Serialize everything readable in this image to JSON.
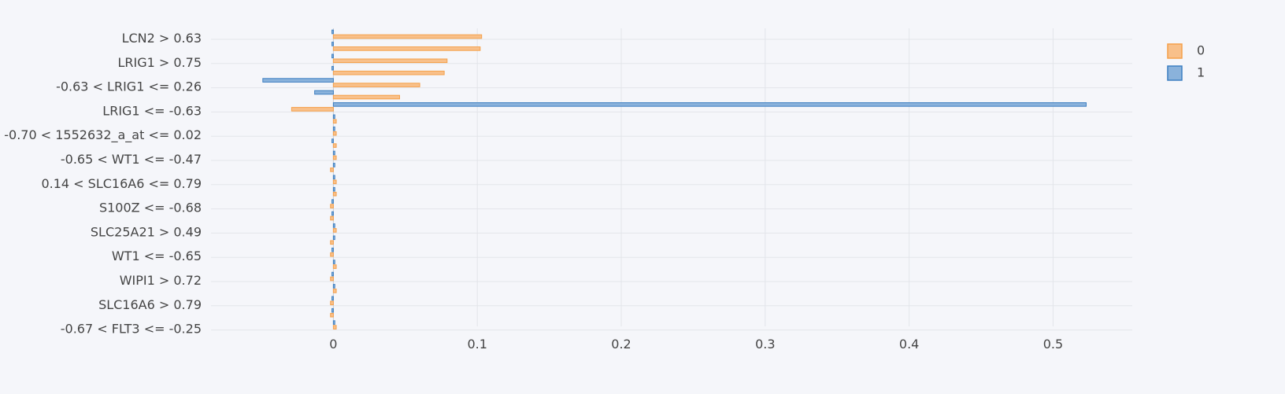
{
  "chart_data": {
    "type": "bar",
    "orientation": "horizontal",
    "grid": true,
    "legend_placement": "top-right",
    "xlim": [
      -0.085,
      0.555
    ],
    "x_ticks": [
      0,
      0.1,
      0.2,
      0.3,
      0.4,
      0.5
    ],
    "x_tick_labels": [
      "0",
      "0.1",
      "0.2",
      "0.3",
      "0.4",
      "0.5"
    ],
    "categories": [
      "LCN2 > 0.63",
      "",
      "LRIG1 > 0.75",
      "",
      "-0.63 < LRIG1 <= 0.26",
      "",
      "LRIG1 <= -0.63",
      "",
      "-0.70 < 1552632_a_at <= 0.02",
      "",
      "-0.65 < WT1 <= -0.47",
      "",
      "0.14 < SLC16A6 <= 0.79",
      "",
      "S100Z <= -0.68",
      "",
      "SLC25A21 > 0.49",
      "",
      "WT1 <= -0.65",
      "",
      "WIPI1 > 0.72",
      "",
      "SLC16A6 > 0.79",
      "",
      "-0.67 < FLT3 <= -0.25"
    ],
    "series": [
      {
        "name": "0",
        "color": "#f5a04a",
        "fill": "#f8c08a",
        "values": [
          0.103,
          0.102,
          0.079,
          0.077,
          0.06,
          0.046,
          -0.029,
          0.002,
          0.002,
          0.002,
          0.002,
          -0.002,
          0.002,
          0.002,
          -0.002,
          -0.002,
          0.002,
          -0.002,
          -0.002,
          0.002,
          -0.002,
          0.002,
          -0.002,
          -0.002,
          0.002
        ]
      },
      {
        "name": "1",
        "color": "#3d7fc1",
        "fill": "#8ab2db",
        "values": [
          -0.001,
          -0.001,
          -0.001,
          -0.001,
          -0.049,
          -0.013,
          0.523,
          0.001,
          0.001,
          -0.001,
          0.001,
          0.001,
          0.001,
          0.001,
          -0.001,
          -0.001,
          0.001,
          0.001,
          -0.001,
          0.001,
          -0.001,
          0.001,
          -0.001,
          -0.001,
          0.001
        ]
      }
    ]
  }
}
